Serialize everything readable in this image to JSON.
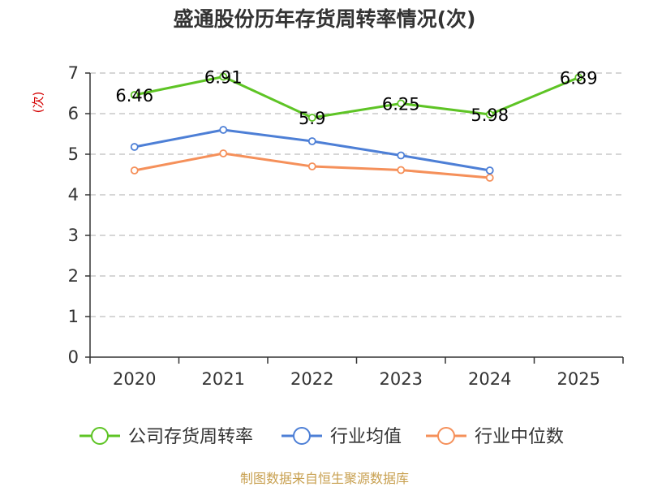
{
  "chart_data": {
    "type": "line",
    "title": "盛通股份历年存货周转率情况(次)",
    "ylabel": "(次)",
    "categories": [
      "2020",
      "2021",
      "2022",
      "2023",
      "2024",
      "2025"
    ],
    "ylim": [
      0,
      7
    ],
    "yticks": [
      "0",
      "1",
      "2",
      "3",
      "4",
      "5",
      "6",
      "7"
    ],
    "grid": true,
    "legend_position": "bottom",
    "series": [
      {
        "name": "公司存货周转率",
        "color": "#5ec425",
        "values": [
          6.46,
          6.91,
          5.9,
          6.25,
          5.98,
          6.89
        ],
        "labels": [
          "6.46",
          "6.91",
          "5.9",
          "6.25",
          "5.98",
          "6.89"
        ]
      },
      {
        "name": "行业均值",
        "color": "#4d7fd6",
        "values": [
          5.18,
          5.6,
          5.32,
          4.97,
          4.6,
          null
        ]
      },
      {
        "name": "行业中位数",
        "color": "#f5905a",
        "values": [
          4.6,
          5.02,
          4.7,
          4.61,
          4.42,
          null
        ]
      }
    ],
    "source": "制图数据来自恒生聚源数据库"
  }
}
